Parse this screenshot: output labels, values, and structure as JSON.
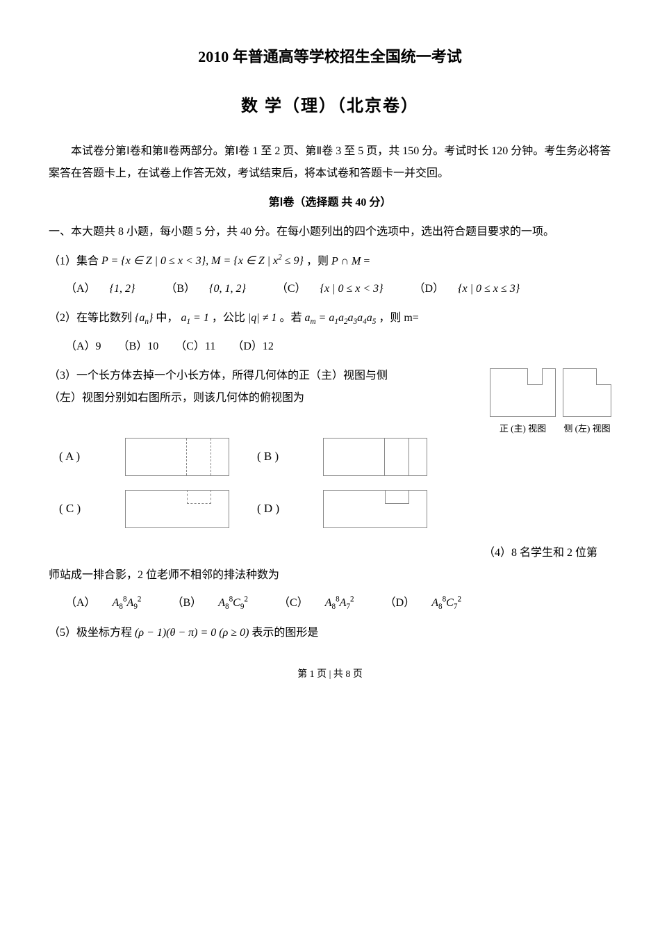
{
  "title": "2010 年普通高等学校招生全国统一考试",
  "subtitle": "数 学（理）（北京卷）",
  "intro": "本试卷分第Ⅰ卷和第Ⅱ卷两部分。第Ⅰ卷 1 至 2 页、第Ⅱ卷 3 至 5 页，共 150 分。考试时长 120 分钟。考生务必将答案答在答题卡上，在试卷上作答无效，考试结束后，将本试卷和答题卡一并交回。",
  "section1_header": "第Ⅰ卷（选择题  共 40 分）",
  "section1_instruction": "一、本大题共 8 小题，每小题 5 分，共 40 分。在每小题列出的四个选项中，选出符合题目要求的一项。",
  "q1": {
    "prefix": "（1）集合",
    "formula1": "P = {x ∈ Z | 0 ≤ x < 3}, M = {x ∈ Z | x² ≤ 9}",
    "mid": "，则",
    "formula2": "P ∩ M",
    "suffix": "=",
    "optA_label": "（A）",
    "optA": "{1, 2}",
    "optB_label": "（B）",
    "optB": "{0, 1, 2}",
    "optC_label": "（C）",
    "optC": "{x | 0 ≤ x < 3}",
    "optD_label": "（D）",
    "optD": "{x | 0 ≤ x ≤ 3}"
  },
  "q2": {
    "prefix": "（2）在等比数列",
    "f1": "{aₙ}",
    "m1": "中，",
    "f2": "a₁ = 1",
    "m2": "，公比",
    "f3": "|q| ≠ 1",
    "m3": "。若",
    "f4": "aₘ = a₁a₂a₃a₄a₅",
    "m4": "，则 m=",
    "optA": "（A）9",
    "optB": "（B）10",
    "optC": "（C）11",
    "optD": "（D）12"
  },
  "q3": {
    "line1": "（3）一个长方体去掉一个小长方体，所得几何体的正（主）视图与侧",
    "line2": "（左）视图分别如右图所示，则该几何体的俯视图为",
    "view_main_label": "正 (主) 视图",
    "view_side_label": "侧 (左) 视图",
    "labelA": "( A )",
    "labelB": "( B )",
    "labelC": "( C )",
    "labelD": "( D )"
  },
  "q4": {
    "line1": "（4）8 名学生和 2 位第",
    "line2": "师站成一排合影，2 位老师不相邻的排法种数为",
    "optA_label": "（A）",
    "optA": "A₈⁸A₉²",
    "optB_label": "（B）",
    "optB": "A₈⁸C₉²",
    "optC_label": "（C）",
    "optC": "A₈⁸A₇²",
    "optD_label": "（D）",
    "optD": "A₈⁸C₇²"
  },
  "q5": {
    "prefix": "（5）极坐标方程",
    "formula": "(ρ − 1)(θ − π) = 0 (ρ ≥ 0)",
    "suffix": "表示的图形是"
  },
  "footer": "第 1 页 | 共 8 页"
}
